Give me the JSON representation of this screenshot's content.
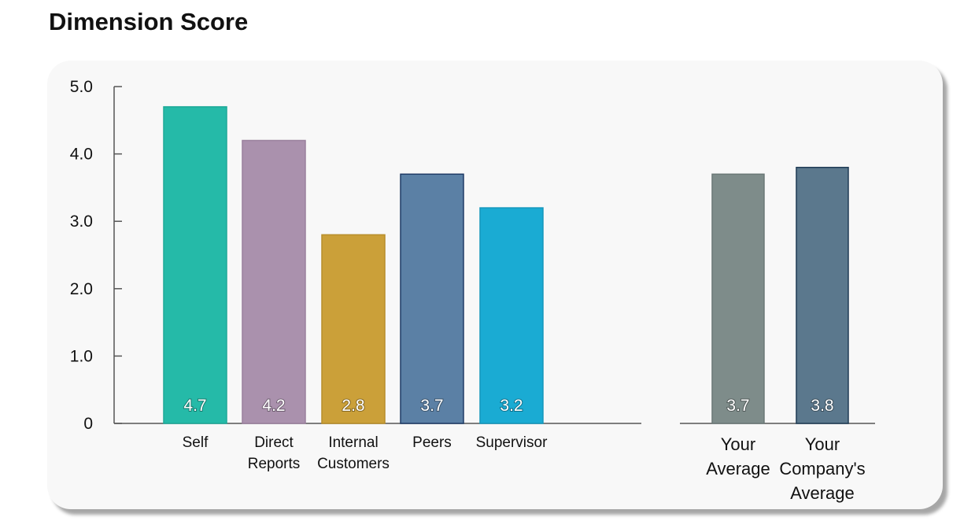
{
  "page": {
    "title": "Dimension Score"
  },
  "chart_data": {
    "type": "bar",
    "title": "Dimension Score",
    "ylim": [
      0,
      5.0
    ],
    "yticks": [
      "0",
      "1.0",
      "2.0",
      "3.0",
      "4.0",
      "5.0"
    ],
    "grid": false,
    "legend": "none",
    "groups": [
      {
        "bars": [
          {
            "label": [
              "Self"
            ],
            "value": 4.7,
            "value_label": "4.7",
            "color": "#25BAA8",
            "border": "#1fa998"
          },
          {
            "label": [
              "Direct",
              "Reports"
            ],
            "value": 4.2,
            "value_label": "4.2",
            "color": "#AA91AD",
            "border": "#9a809d"
          },
          {
            "label": [
              "Internal",
              "Customers"
            ],
            "value": 2.8,
            "value_label": "2.8",
            "color": "#CBA039",
            "border": "#b88e2a"
          },
          {
            "label": [
              "Peers"
            ],
            "value": 3.7,
            "value_label": "3.7",
            "color": "#5B80A5",
            "border": "#1f3b66"
          },
          {
            "label": [
              "Supervisor"
            ],
            "value": 3.2,
            "value_label": "3.2",
            "color": "#1AABD3",
            "border": "#1597bc"
          }
        ]
      },
      {
        "bars": [
          {
            "label": [
              "Your",
              "Average"
            ],
            "value": 3.7,
            "value_label": "3.7",
            "color": "#7E8C8A",
            "border": "#6b7877"
          },
          {
            "label": [
              "Your",
              "Company's",
              "Average"
            ],
            "value": 3.8,
            "value_label": "3.8",
            "color": "#5B788D",
            "border": "#1f3b55"
          }
        ]
      }
    ]
  }
}
